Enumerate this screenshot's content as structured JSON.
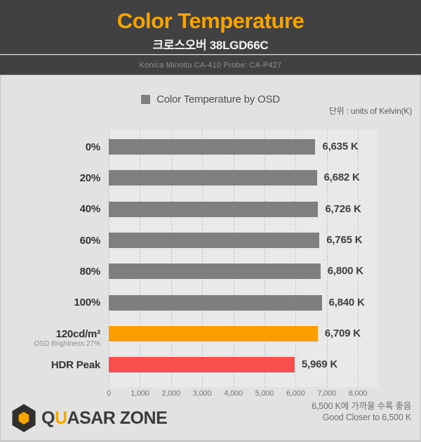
{
  "header": {
    "title": "Color Temperature",
    "subtitle": "크로스오버 38LGD66C",
    "probe_info": "Konica Minolta CA-410 Probe: CA-P427"
  },
  "legend": {
    "label": "Color Temperature by OSD",
    "swatch_color": "#7f7f7f"
  },
  "units_note": "단위 : units of Kelvin(K)",
  "chart_data": {
    "type": "bar",
    "orientation": "horizontal",
    "title": "Color Temperature by OSD",
    "unit": "K",
    "categories": [
      "0%",
      "20%",
      "40%",
      "60%",
      "80%",
      "100%",
      "120cd/m²",
      "HDR Peak"
    ],
    "sub_labels": [
      "",
      "",
      "",
      "",
      "",
      "",
      "OSD Brightness 27%",
      ""
    ],
    "values": [
      6635,
      6682,
      6726,
      6765,
      6800,
      6840,
      6709,
      5969
    ],
    "value_labels": [
      "6,635 K",
      "6,682 K",
      "6,726 K",
      "6,765 K",
      "6,800 K",
      "6,840 K",
      "6,709 K",
      "5,969 K"
    ],
    "bar_colors": [
      "#7f7f7f",
      "#7f7f7f",
      "#7f7f7f",
      "#7f7f7f",
      "#7f7f7f",
      "#7f7f7f",
      "#fc9e00",
      "#fb4f4f"
    ],
    "xlim": [
      0,
      8000
    ],
    "x_tick_values": [
      0,
      1000,
      2000,
      3000,
      4000,
      5000,
      6000,
      7000,
      8000
    ],
    "x_tick_labels": [
      "0",
      "1,000",
      "2,000",
      "3,000",
      "4,000",
      "5,000",
      "6,000",
      "7,000",
      "8,000"
    ],
    "grid": "dashed-vertical",
    "legend_position": "top-center"
  },
  "footer": {
    "brand_parts": [
      {
        "text": "Q",
        "accent": false
      },
      {
        "text": "U",
        "accent": true
      },
      {
        "text": "ASAR ZONE",
        "accent": false
      }
    ],
    "note_korean": "6,500 K에 가까울 수록 좋음",
    "note_english": "Good Closer to 6,500 K"
  },
  "colors": {
    "header_bg": "#414141",
    "title_accent": "#f7a400",
    "body_bg": "#e2e2e2",
    "plot_bg": "#e9e9e9",
    "gridline": "#c6c6c6",
    "bar_gray": "#7f7f7f",
    "bar_orange": "#fc9e00",
    "bar_red": "#fb4f4f"
  }
}
